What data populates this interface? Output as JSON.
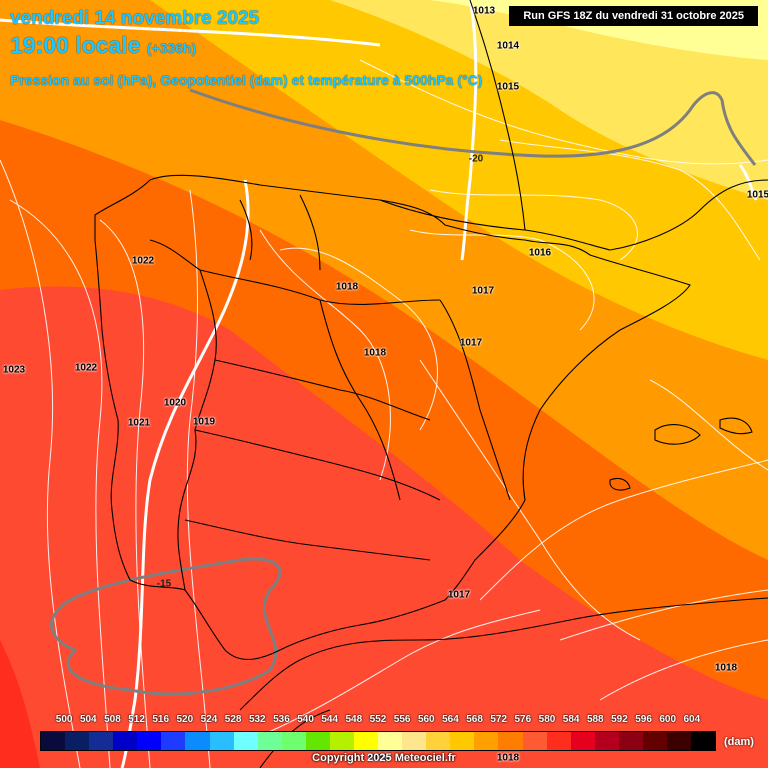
{
  "header": {
    "date": "vendredi 14 novembre 2025",
    "time": "19:00 locale",
    "offset": "(+336h)",
    "params": "Pression au sol (hPa), Geopotentiel (dam) et température à 500hPa (°C)"
  },
  "run_info": "Run GFS 18Z du vendredi 31 octobre 2025",
  "pressure_labels": [
    "1013",
    "1014",
    "1015",
    "1015",
    "1016",
    "1017",
    "1017",
    "1017",
    "1018",
    "1018",
    "1018",
    "1019",
    "1020",
    "1021",
    "1022",
    "1022",
    "1023",
    "1013",
    "1018"
  ],
  "temperature_labels": [
    "-20",
    "-15"
  ],
  "scale": {
    "unit": "(dam)",
    "labels": [
      "500",
      "504",
      "508",
      "512",
      "516",
      "520",
      "524",
      "528",
      "532",
      "536",
      "540",
      "544",
      "548",
      "552",
      "556",
      "560",
      "564",
      "568",
      "572",
      "576",
      "580",
      "584",
      "588",
      "592",
      "596",
      "600",
      "604"
    ],
    "colors": [
      "#0a0a3c",
      "#0a1e64",
      "#142d96",
      "#0000c8",
      "#0000ff",
      "#1e3cff",
      "#0a8cff",
      "#28beff",
      "#6effff",
      "#6eff96",
      "#6eff6e",
      "#64e600",
      "#b4f000",
      "#ffff00",
      "#ffff96",
      "#ffe68c",
      "#ffd23c",
      "#ffc800",
      "#ffa000",
      "#ff7d00",
      "#ff5a32",
      "#ff2d1e",
      "#e6001e",
      "#b4001e",
      "#8c0014",
      "#640000",
      "#3c0000",
      "#000000"
    ]
  },
  "copyright": "Copyright 2025 Meteociel.fr"
}
